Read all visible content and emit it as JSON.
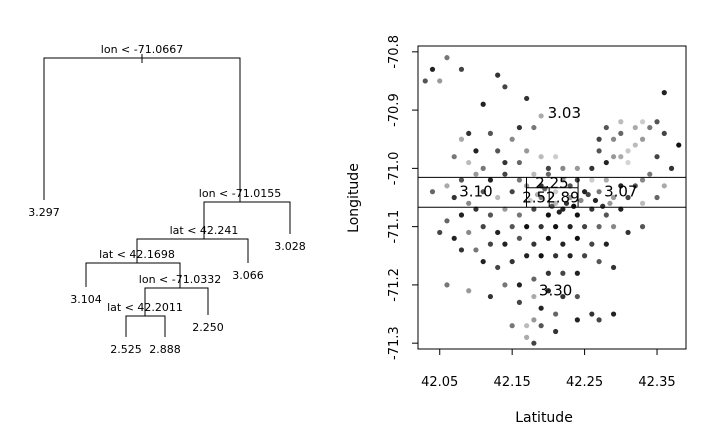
{
  "chart_data": [
    {
      "type": "tree",
      "nodes": {
        "root": {
          "split": "lon < -71.0667",
          "left": "leaf_left",
          "right": "n1"
        },
        "leaf_left": {
          "value": "3.297"
        },
        "n1": {
          "split": "lon < -71.0155",
          "left": "n2",
          "right": "leaf_3028"
        },
        "leaf_3028": {
          "value": "3.028"
        },
        "n2": {
          "split": "lat < 42.241",
          "left": "n3",
          "right": "leaf_3066"
        },
        "leaf_3066": {
          "value": "3.066"
        },
        "n3": {
          "split": "lat < 42.1698",
          "left": "leaf_3104",
          "right": "n4"
        },
        "leaf_3104": {
          "value": "3.104"
        },
        "n4": {
          "split": "lon < -71.0332",
          "left": "n5",
          "right": "leaf_2250"
        },
        "leaf_2250": {
          "value": "2.250"
        },
        "n5": {
          "split": "lat < 42.2011",
          "left": "leaf_2525",
          "right": "leaf_2888"
        },
        "leaf_2525": {
          "value": "2.525"
        },
        "leaf_2888": {
          "value": "2.888"
        }
      }
    },
    {
      "type": "scatter",
      "xlabel": "Latitude",
      "ylabel": "Longitude",
      "xlim": [
        42.02,
        42.39
      ],
      "ylim": [
        -71.31,
        -70.79
      ],
      "xticks": [
        "42.05",
        "42.15",
        "42.25",
        "42.35"
      ],
      "yticks": [
        "-70.8",
        "-70.9",
        "-71.0",
        "-71.1",
        "-71.2",
        "-71.3"
      ],
      "point_colors": [
        "#111111",
        "#333333",
        "#555555",
        "#777777",
        "#999999",
        "#bbbbbb",
        "#d4d4d4"
      ],
      "split_lines": [
        {
          "orientation": "h",
          "y": -71.0155
        },
        {
          "orientation": "h",
          "y": -71.0667
        },
        {
          "orientation": "v",
          "x": 42.1698,
          "y_from": -71.0667,
          "y_to": -71.0155
        },
        {
          "orientation": "v",
          "x": 42.241,
          "y_from": -71.0667,
          "y_to": -71.0155
        },
        {
          "orientation": "h",
          "y": -71.0332,
          "x_from": 42.1698,
          "x_to": 42.241
        },
        {
          "orientation": "v",
          "x": 42.2011,
          "y_from": -71.0667,
          "y_to": -71.0332
        }
      ],
      "region_labels": [
        {
          "text": "3.03",
          "x": 42.222,
          "y": -70.905
        },
        {
          "text": "3.10",
          "x": 42.1,
          "y": -71.04
        },
        {
          "text": "2.25",
          "x": 42.205,
          "y": -71.025
        },
        {
          "text": "2.52",
          "x": 42.187,
          "y": -71.05
        },
        {
          "text": "2.89",
          "x": 42.22,
          "y": -71.05
        },
        {
          "text": "3.07",
          "x": 42.3,
          "y": -71.04
        },
        {
          "text": "3.30",
          "x": 42.21,
          "y": -71.21
        }
      ],
      "points": [
        [
          42.06,
          -70.81,
          "#777777"
        ],
        [
          42.04,
          -70.83,
          "#222222"
        ],
        [
          42.03,
          -70.85,
          "#555555"
        ],
        [
          42.05,
          -70.85,
          "#999999"
        ],
        [
          42.08,
          -70.83,
          "#444444"
        ],
        [
          42.13,
          -70.84,
          "#333333"
        ],
        [
          42.14,
          -70.86,
          "#444444"
        ],
        [
          42.17,
          -70.88,
          "#333333"
        ],
        [
          42.11,
          -70.89,
          "#222222"
        ],
        [
          42.19,
          -70.91,
          "#aaaaaa"
        ],
        [
          42.18,
          -70.93,
          "#777777"
        ],
        [
          42.16,
          -70.93,
          "#333333"
        ],
        [
          42.09,
          -70.94,
          "#333333"
        ],
        [
          42.12,
          -70.94,
          "#555555"
        ],
        [
          42.15,
          -70.95,
          "#888888"
        ],
        [
          42.08,
          -70.95,
          "#aaaaaa"
        ],
        [
          42.1,
          -70.97,
          "#222222"
        ],
        [
          42.13,
          -70.97,
          "#555555"
        ],
        [
          42.17,
          -70.97,
          "#999999"
        ],
        [
          42.19,
          -70.98,
          "#bbbbbb"
        ],
        [
          42.21,
          -70.98,
          "#cccccc"
        ],
        [
          42.07,
          -70.98,
          "#777777"
        ],
        [
          42.09,
          -70.99,
          "#bbbbbb"
        ],
        [
          42.14,
          -70.99,
          "#333333"
        ],
        [
          42.16,
          -70.99,
          "#666666"
        ],
        [
          42.11,
          -71.0,
          "#777777"
        ],
        [
          42.2,
          -71.0,
          "#444444"
        ],
        [
          42.22,
          -71.0,
          "#888888"
        ],
        [
          42.24,
          -71.0,
          "#999999"
        ],
        [
          42.26,
          -71.0,
          "#333333"
        ],
        [
          42.28,
          -70.99,
          "#222222"
        ],
        [
          42.3,
          -70.98,
          "#aaaaaa"
        ],
        [
          42.31,
          -70.97,
          "#c8c8c8"
        ],
        [
          42.32,
          -70.96,
          "#bbbbbb"
        ],
        [
          42.33,
          -70.95,
          "#999999"
        ],
        [
          42.34,
          -70.93,
          "#777777"
        ],
        [
          42.35,
          -70.92,
          "#555555"
        ],
        [
          42.36,
          -70.94,
          "#444444"
        ],
        [
          42.32,
          -70.93,
          "#aaaaaa"
        ],
        [
          42.3,
          -70.94,
          "#666666"
        ],
        [
          42.29,
          -70.95,
          "#888888"
        ],
        [
          42.27,
          -70.95,
          "#444444"
        ],
        [
          42.28,
          -70.93,
          "#555555"
        ],
        [
          42.3,
          -70.92,
          "#bbbbbb"
        ],
        [
          42.33,
          -70.92,
          "#cccccc"
        ],
        [
          42.31,
          -70.99,
          "#d4d4d4"
        ],
        [
          42.29,
          -70.98,
          "#999999"
        ],
        [
          42.27,
          -70.97,
          "#555555"
        ],
        [
          42.35,
          -70.98,
          "#444444"
        ],
        [
          42.37,
          -71.0,
          "#333333"
        ],
        [
          42.36,
          -70.87,
          "#222222"
        ],
        [
          42.38,
          -70.96,
          "#111111"
        ],
        [
          42.34,
          -71.01,
          "#777777"
        ],
        [
          42.33,
          -71.02,
          "#888888"
        ],
        [
          42.36,
          -71.03,
          "#aaaaaa"
        ],
        [
          42.32,
          -71.03,
          "#555555"
        ],
        [
          42.3,
          -71.03,
          "#222222"
        ],
        [
          42.28,
          -71.02,
          "#aaaaaa"
        ],
        [
          42.26,
          -71.02,
          "#cccccc"
        ],
        [
          42.24,
          -71.02,
          "#444444"
        ],
        [
          42.22,
          -71.02,
          "#999999"
        ],
        [
          42.2,
          -71.01,
          "#666666"
        ],
        [
          42.18,
          -71.01,
          "#bbbbbb"
        ],
        [
          42.16,
          -71.02,
          "#777777"
        ],
        [
          42.14,
          -71.01,
          "#444444"
        ],
        [
          42.12,
          -71.02,
          "#222222"
        ],
        [
          42.1,
          -71.01,
          "#999999"
        ],
        [
          42.08,
          -71.02,
          "#555555"
        ],
        [
          42.06,
          -71.03,
          "#aaaaaa"
        ],
        [
          42.04,
          -71.04,
          "#666666"
        ],
        [
          42.07,
          -71.05,
          "#333333"
        ],
        [
          42.09,
          -71.06,
          "#888888"
        ],
        [
          42.11,
          -71.04,
          "#555555"
        ],
        [
          42.13,
          -71.05,
          "#bbbbbb"
        ],
        [
          42.15,
          -71.04,
          "#444444"
        ],
        [
          42.17,
          -71.03,
          "#999999"
        ],
        [
          42.19,
          -71.03,
          "#333333"
        ],
        [
          42.21,
          -71.04,
          "#cccccc"
        ],
        [
          42.23,
          -71.03,
          "#555555"
        ],
        [
          42.25,
          -71.04,
          "#222222"
        ],
        [
          42.27,
          -71.04,
          "#777777"
        ],
        [
          42.29,
          -71.05,
          "#999999"
        ],
        [
          42.31,
          -71.05,
          "#444444"
        ],
        [
          42.33,
          -71.06,
          "#bbbbbb"
        ],
        [
          42.35,
          -71.05,
          "#666666"
        ],
        [
          42.3,
          -71.07,
          "#222222"
        ],
        [
          42.28,
          -71.08,
          "#555555"
        ],
        [
          42.26,
          -71.07,
          "#333333"
        ],
        [
          42.24,
          -71.08,
          "#111111"
        ],
        [
          42.22,
          -71.07,
          "#222222"
        ],
        [
          42.2,
          -71.08,
          "#111111"
        ],
        [
          42.18,
          -71.07,
          "#444444"
        ],
        [
          42.16,
          -71.08,
          "#777777"
        ],
        [
          42.14,
          -71.07,
          "#999999"
        ],
        [
          42.12,
          -71.08,
          "#555555"
        ],
        [
          42.1,
          -71.07,
          "#333333"
        ],
        [
          42.08,
          -71.08,
          "#222222"
        ],
        [
          42.06,
          -71.09,
          "#666666"
        ],
        [
          42.05,
          -71.11,
          "#444444"
        ],
        [
          42.07,
          -71.12,
          "#222222"
        ],
        [
          42.09,
          -71.11,
          "#888888"
        ],
        [
          42.11,
          -71.1,
          "#444444"
        ],
        [
          42.13,
          -71.11,
          "#222222"
        ],
        [
          42.15,
          -71.1,
          "#555555"
        ],
        [
          42.17,
          -71.1,
          "#111111"
        ],
        [
          42.19,
          -71.1,
          "#333333"
        ],
        [
          42.21,
          -71.1,
          "#111111"
        ],
        [
          42.23,
          -71.1,
          "#222222"
        ],
        [
          42.25,
          -71.1,
          "#444444"
        ],
        [
          42.27,
          -71.1,
          "#666666"
        ],
        [
          42.29,
          -71.1,
          "#888888"
        ],
        [
          42.31,
          -71.11,
          "#333333"
        ],
        [
          42.33,
          -71.1,
          "#555555"
        ],
        [
          42.28,
          -71.13,
          "#222222"
        ],
        [
          42.26,
          -71.13,
          "#444444"
        ],
        [
          42.24,
          -71.12,
          "#111111"
        ],
        [
          42.22,
          -71.13,
          "#222222"
        ],
        [
          42.2,
          -71.12,
          "#111111"
        ],
        [
          42.18,
          -71.13,
          "#333333"
        ],
        [
          42.16,
          -71.12,
          "#555555"
        ],
        [
          42.14,
          -71.13,
          "#222222"
        ],
        [
          42.12,
          -71.13,
          "#444444"
        ],
        [
          42.1,
          -71.14,
          "#777777"
        ],
        [
          42.08,
          -71.14,
          "#333333"
        ],
        [
          42.11,
          -71.16,
          "#222222"
        ],
        [
          42.13,
          -71.17,
          "#444444"
        ],
        [
          42.15,
          -71.16,
          "#333333"
        ],
        [
          42.17,
          -71.15,
          "#222222"
        ],
        [
          42.19,
          -71.15,
          "#111111"
        ],
        [
          42.21,
          -71.15,
          "#333333"
        ],
        [
          42.23,
          -71.15,
          "#222222"
        ],
        [
          42.25,
          -71.15,
          "#444444"
        ],
        [
          42.27,
          -71.16,
          "#555555"
        ],
        [
          42.29,
          -71.17,
          "#333333"
        ],
        [
          42.24,
          -71.18,
          "#222222"
        ],
        [
          42.22,
          -71.18,
          "#444444"
        ],
        [
          42.2,
          -71.18,
          "#333333"
        ],
        [
          42.18,
          -71.19,
          "#666666"
        ],
        [
          42.16,
          -71.2,
          "#222222"
        ],
        [
          42.14,
          -71.2,
          "#777777"
        ],
        [
          42.2,
          -71.21,
          "#222222"
        ],
        [
          42.22,
          -71.22,
          "#333333"
        ],
        [
          42.24,
          -71.22,
          "#555555"
        ],
        [
          42.18,
          -71.22,
          "#aaaaaa"
        ],
        [
          42.16,
          -71.23,
          "#444444"
        ],
        [
          42.12,
          -71.22,
          "#333333"
        ],
        [
          42.09,
          -71.21,
          "#999999"
        ],
        [
          42.06,
          -71.2,
          "#777777"
        ],
        [
          42.19,
          -71.24,
          "#222222"
        ],
        [
          42.21,
          -71.25,
          "#666666"
        ],
        [
          42.26,
          -71.25,
          "#333333"
        ],
        [
          42.27,
          -71.26,
          "#444444"
        ],
        [
          42.29,
          -71.25,
          "#222222"
        ],
        [
          42.18,
          -71.26,
          "#999999"
        ],
        [
          42.17,
          -71.27,
          "#bbbbbb"
        ],
        [
          42.19,
          -71.27,
          "#555555"
        ],
        [
          42.21,
          -71.28,
          "#333333"
        ],
        [
          42.17,
          -71.29,
          "#aaaaaa"
        ],
        [
          42.18,
          -71.3,
          "#444444"
        ],
        [
          42.24,
          -71.26,
          "#222222"
        ],
        [
          42.15,
          -71.27,
          "#777777"
        ],
        [
          42.23,
          -71.05,
          "#999999"
        ],
        [
          42.21,
          -71.06,
          "#bbbbbb"
        ],
        [
          42.19,
          -71.05,
          "#777777"
        ],
        [
          42.235,
          -71.065,
          "#111111"
        ],
        [
          42.225,
          -71.06,
          "#333333"
        ],
        [
          42.215,
          -71.075,
          "#222222"
        ],
        [
          42.205,
          -71.065,
          "#555555"
        ],
        [
          42.245,
          -71.055,
          "#888888"
        ],
        [
          42.185,
          -71.045,
          "#aaaaaa"
        ],
        [
          42.175,
          -71.055,
          "#cccccc"
        ],
        [
          42.195,
          -71.035,
          "#666666"
        ],
        [
          42.255,
          -71.045,
          "#444444"
        ],
        [
          42.265,
          -71.055,
          "#222222"
        ],
        [
          42.275,
          -71.065,
          "#333333"
        ],
        [
          42.285,
          -71.06,
          "#999999"
        ]
      ]
    }
  ]
}
